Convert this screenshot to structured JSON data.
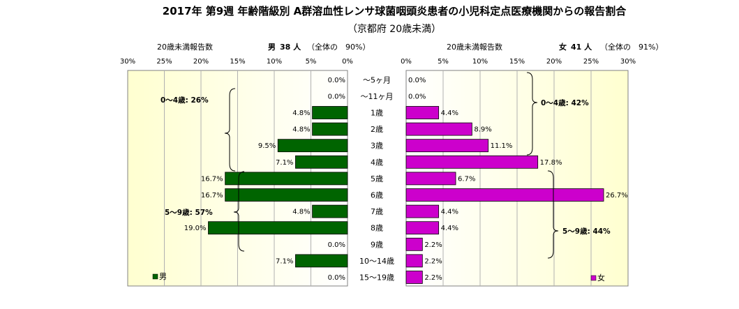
{
  "title": "2017年 第9週 年齢階級別 A群溶血性レンサ球菌咽頭炎患者の小児科定点医療機関からの報告割合",
  "subtitle": "（京都府 20歳未満）",
  "chart_data": [
    {
      "type": "bar",
      "orientation": "horizontal",
      "panel": "left",
      "header_left": "20歳未満報告数",
      "header_sex": "男",
      "header_count": "38 人",
      "header_note": "（全体の　90%）",
      "xlim": [
        0,
        30
      ],
      "x_direction": "reversed",
      "ticks": [
        "30%",
        "25%",
        "20%",
        "15%",
        "10%",
        "5%",
        "0%"
      ],
      "categories": [
        "〜5ヶ月",
        "〜11ヶ月",
        "1歳",
        "2歳",
        "3歳",
        "4歳",
        "5歳",
        "6歳",
        "7歳",
        "8歳",
        "9歳",
        "10〜14歳",
        "15〜19歳"
      ],
      "values": [
        0.0,
        0.0,
        4.8,
        4.8,
        9.5,
        7.1,
        16.7,
        16.7,
        4.8,
        19.0,
        0.0,
        7.1,
        0.0
      ],
      "value_labels": [
        "0.0%",
        "0.0%",
        "4.8%",
        "4.8%",
        "9.5%",
        "7.1%",
        "16.7%",
        "16.7%",
        "4.8%",
        "19.0%",
        "0.0%",
        "7.1%",
        "0.0%"
      ],
      "group_labels": [
        "0〜4歳: 26%",
        "5〜9歳: 57%"
      ],
      "legend": "男",
      "legend_position": "bottom-left",
      "color": "#006400"
    },
    {
      "type": "bar",
      "orientation": "horizontal",
      "panel": "right",
      "header_left": "20歳未満報告数",
      "header_sex": "女",
      "header_count": "41 人",
      "header_note": "（全体の　91%）",
      "xlim": [
        0,
        30
      ],
      "ticks": [
        "0%",
        "5%",
        "10%",
        "15%",
        "20%",
        "25%",
        "30%"
      ],
      "categories": [
        "〜5ヶ月",
        "〜11ヶ月",
        "1歳",
        "2歳",
        "3歳",
        "4歳",
        "5歳",
        "6歳",
        "7歳",
        "8歳",
        "9歳",
        "10〜14歳",
        "15〜19歳"
      ],
      "values": [
        0.0,
        0.0,
        4.4,
        8.9,
        11.1,
        17.8,
        6.7,
        26.7,
        4.4,
        4.4,
        2.2,
        2.2,
        2.2
      ],
      "value_labels": [
        "0.0%",
        "0.0%",
        "4.4%",
        "8.9%",
        "11.1%",
        "17.8%",
        "6.7%",
        "26.7%",
        "4.4%",
        "4.4%",
        "2.2%",
        "2.2%",
        "2.2%"
      ],
      "group_labels": [
        "0〜4歳: 42%",
        "5〜9歳: 44%"
      ],
      "legend": "女",
      "legend_position": "bottom-right",
      "color": "#cc00cc"
    }
  ]
}
